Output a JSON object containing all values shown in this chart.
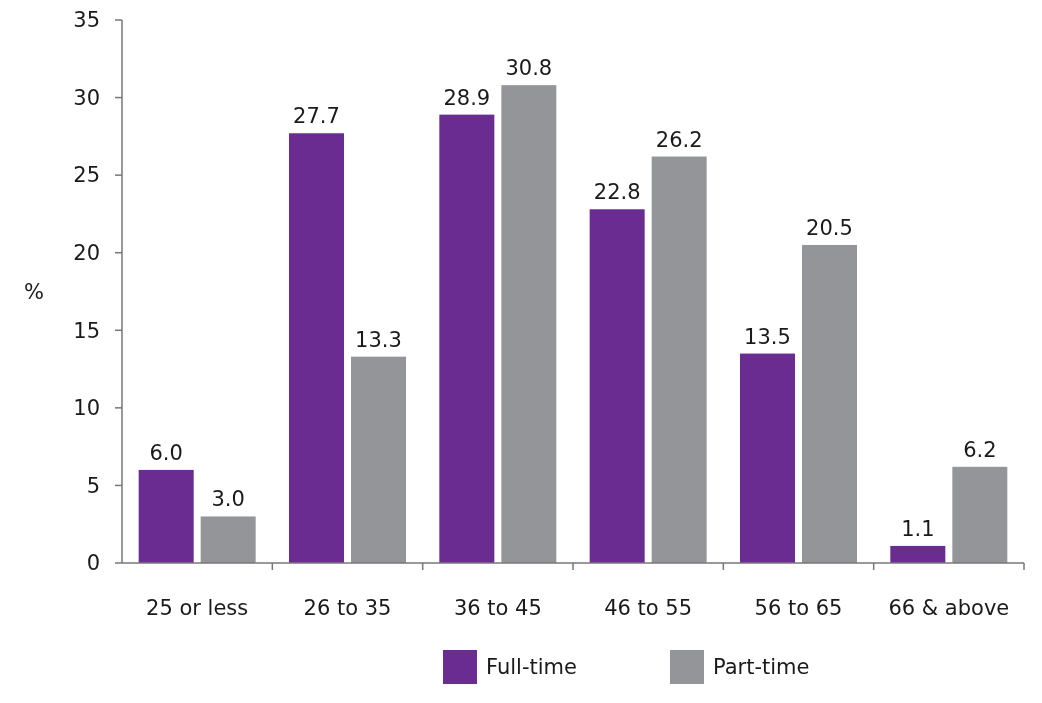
{
  "chart_data": {
    "type": "bar",
    "ylabel": "%",
    "categories": [
      "25 or less",
      "26 to 35",
      "36 to 45",
      "46 to 55",
      "56 to 65",
      "66 & above"
    ],
    "series": [
      {
        "name": "Full-time",
        "color": "#6a2c91",
        "values": [
          6.0,
          27.7,
          28.9,
          22.8,
          13.5,
          1.1
        ]
      },
      {
        "name": "Part-time",
        "color": "#939598",
        "values": [
          3.0,
          13.3,
          30.8,
          26.2,
          20.5,
          6.2
        ]
      }
    ],
    "value_labels": [
      [
        "6.0",
        "27.7",
        "28.9",
        "22.8",
        "13.5",
        "1.1"
      ],
      [
        "3.0",
        "13.3",
        "30.8",
        "26.2",
        "20.5",
        "6.2"
      ]
    ],
    "ylim": [
      0,
      35
    ],
    "yticks": [
      0,
      5,
      10,
      15,
      20,
      25,
      30,
      35
    ],
    "grid": false,
    "legend": "bottom"
  }
}
